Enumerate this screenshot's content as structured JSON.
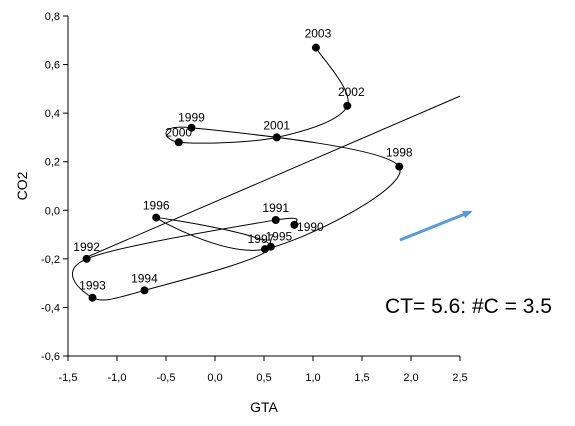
{
  "chart_data": {
    "type": "scatter",
    "title": "",
    "xlabel": "GTA",
    "ylabel": "CO2",
    "xlim": [
      -1.5,
      2.5
    ],
    "ylim": [
      -0.6,
      0.8
    ],
    "x_ticks": [
      -1.5,
      -1.0,
      -0.5,
      0.0,
      0.5,
      1.0,
      1.5,
      2.0,
      2.5
    ],
    "x_tick_labels": [
      "-1,5",
      "-1,0",
      "-0,5",
      "0,0",
      "0,5",
      "1,0",
      "1,5",
      "2,0",
      "2,5"
    ],
    "y_ticks": [
      -0.6,
      -0.4,
      -0.2,
      0.0,
      0.2,
      0.4,
      0.6,
      0.8
    ],
    "y_tick_labels": [
      "-0,6",
      "-0,4",
      "-0,2",
      "0,0",
      "0,2",
      "0,4",
      "0,6",
      "0,8"
    ],
    "grid": false,
    "points": [
      {
        "label": "1990",
        "x": 0.81,
        "y": -0.06
      },
      {
        "label": "1991",
        "x": 0.62,
        "y": -0.04
      },
      {
        "label": "1992",
        "x": -1.31,
        "y": -0.2
      },
      {
        "label": "1993",
        "x": -1.25,
        "y": -0.36
      },
      {
        "label": "1994",
        "x": -0.72,
        "y": -0.33
      },
      {
        "label": "1995",
        "x": 0.57,
        "y": -0.15
      },
      {
        "label": "1996",
        "x": -0.6,
        "y": -0.03
      },
      {
        "label": "1997",
        "x": 0.51,
        "y": -0.16
      },
      {
        "label": "1998",
        "x": 1.88,
        "y": 0.18
      },
      {
        "label": "1999",
        "x": -0.24,
        "y": 0.34
      },
      {
        "label": "2000",
        "x": -0.37,
        "y": 0.28
      },
      {
        "label": "2001",
        "x": 0.63,
        "y": 0.3
      },
      {
        "label": "2002",
        "x": 1.35,
        "y": 0.43
      },
      {
        "label": "2003",
        "x": 1.03,
        "y": 0.67
      }
    ],
    "trend_line": {
      "x": [
        -1.35,
        2.5
      ],
      "y": [
        -0.2,
        0.47
      ]
    },
    "annotation": "CT= 5.6: #C = 3.5",
    "arrow_color": "#5B9BD5",
    "line_color": "#000000"
  }
}
